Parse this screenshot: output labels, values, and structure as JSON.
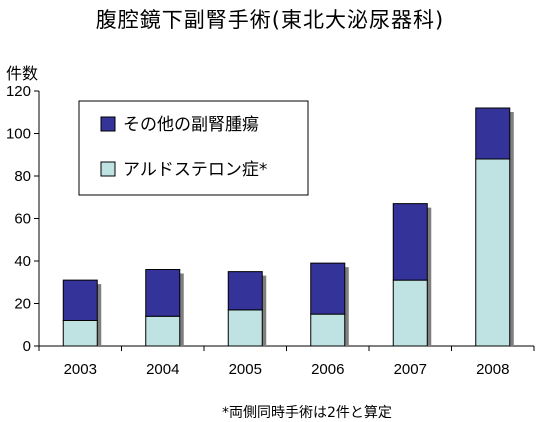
{
  "chart_data": {
    "type": "bar",
    "stacked": true,
    "title": "腹腔鏡下副腎手術(東北大泌尿器科)",
    "ylabel": "件数",
    "xlabel": "",
    "categories": [
      "2003",
      "2004",
      "2005",
      "2006",
      "2007",
      "2008"
    ],
    "series": [
      {
        "name": "アルドステロン症*",
        "values": [
          12,
          14,
          17,
          15,
          31,
          88
        ],
        "color": "#bfe3e3"
      },
      {
        "name": "その他の副腎腫瘍",
        "values": [
          19,
          22,
          18,
          24,
          36,
          24
        ],
        "color": "#333399"
      }
    ],
    "ylim": [
      0,
      120
    ],
    "yticks": [
      "0",
      "20",
      "40",
      "60",
      "80",
      "100",
      "120"
    ],
    "grid": false,
    "legend_position": "top-left",
    "footnote": "*両側同時手術は2件と算定"
  }
}
